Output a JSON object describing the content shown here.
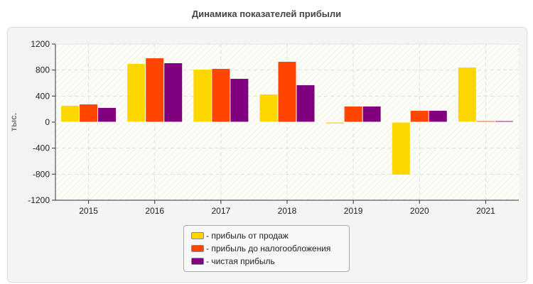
{
  "chart_data": {
    "type": "bar",
    "title": "Динамика показателей прибыли",
    "ylabel": "тыс.",
    "xlabel": "",
    "ylim": [
      -1200,
      1200
    ],
    "yticks": [
      -1200,
      -800,
      -400,
      0,
      400,
      800,
      1200
    ],
    "grid": true,
    "legend_position": "bottom",
    "categories": [
      "2015",
      "2016",
      "2017",
      "2018",
      "2019",
      "2020",
      "2021"
    ],
    "series": [
      {
        "name": "- прибыль от продаж",
        "color": "#FFD700",
        "values": [
          251,
          894,
          807,
          425,
          -20,
          -807,
          839
        ]
      },
      {
        "name": "- прибыль до налогообложения",
        "color": "#FF4500",
        "values": [
          272,
          981,
          818,
          927,
          240,
          174,
          15
        ]
      },
      {
        "name": "- чистая прибыль",
        "color": "#800080",
        "values": [
          218,
          905,
          665,
          567,
          240,
          174,
          15
        ]
      }
    ]
  }
}
